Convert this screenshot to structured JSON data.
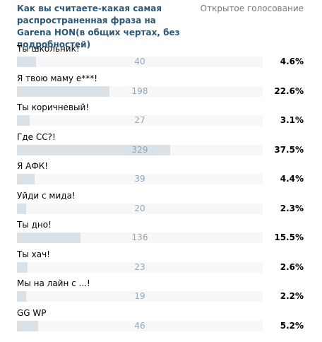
{
  "poll": {
    "title": "Как вы считаете-какая самая распространенная фраза на Garena HON(в общих чертах, без подробностей)",
    "type": "Открытое голосование",
    "options": [
      {
        "label": "Ты школьник!",
        "votes": "40",
        "percent": "4.6%",
        "share": 0.046
      },
      {
        "label": "Я твою маму е***!",
        "votes": "198",
        "percent": "22.6%",
        "share": 0.226
      },
      {
        "label": "Ты коричневый!",
        "votes": "27",
        "percent": "3.1%",
        "share": 0.031
      },
      {
        "label": "Где СС?!",
        "votes": "329",
        "percent": "37.5%",
        "share": 0.375
      },
      {
        "label": "Я АФК!",
        "votes": "39",
        "percent": "4.4%",
        "share": 0.044
      },
      {
        "label": "Уйди с мида!",
        "votes": "20",
        "percent": "2.3%",
        "share": 0.023
      },
      {
        "label": "Ты дно!",
        "votes": "136",
        "percent": "15.5%",
        "share": 0.155
      },
      {
        "label": "Ты хач!",
        "votes": "23",
        "percent": "2.6%",
        "share": 0.026
      },
      {
        "label": "Мы на лайн с ...!",
        "votes": "19",
        "percent": "2.2%",
        "share": 0.022
      },
      {
        "label": "GG WP",
        "votes": "46",
        "percent": "5.2%",
        "share": 0.052
      }
    ],
    "colors": {
      "title": "#2b587a",
      "bar_fill": "#dae2e8",
      "bar_track": "#f7f7f7",
      "count_text": "#8fa7bc"
    }
  }
}
